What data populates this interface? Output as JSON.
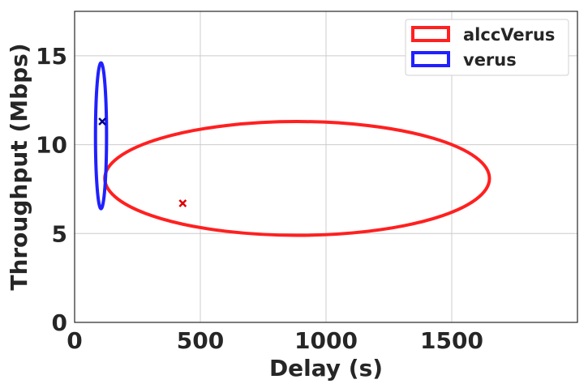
{
  "chart_data": {
    "type": "scatter",
    "title": "",
    "xlabel": "Delay (s)",
    "ylabel": "Throughput (Mbps)",
    "xlim": [
      0,
      2000
    ],
    "ylim": [
      0,
      17.5
    ],
    "xticks": [
      0,
      500,
      1000,
      1500
    ],
    "yticks": [
      0,
      5,
      10,
      15
    ],
    "xtick_labels": [
      "0",
      "500",
      "1000",
      "1500"
    ],
    "ytick_labels": [
      "0",
      "5",
      "10",
      "15"
    ],
    "grid": true,
    "legend_position": "top-right",
    "series": [
      {
        "name": "alccVerus",
        "color": "#ff2020",
        "marker_color": "#e00000",
        "mean": {
          "x": 430,
          "y": 6.7
        },
        "ellipse": {
          "cx": 885,
          "cy": 8.1,
          "rx": 765,
          "ry": 3.2
        }
      },
      {
        "name": "verus",
        "color": "#2020ff",
        "marker_color": "#00008b",
        "mean": {
          "x": 110,
          "y": 11.3
        },
        "ellipse": {
          "cx": 105,
          "cy": 10.5,
          "rx": 22,
          "ry": 4.1
        }
      }
    ]
  }
}
